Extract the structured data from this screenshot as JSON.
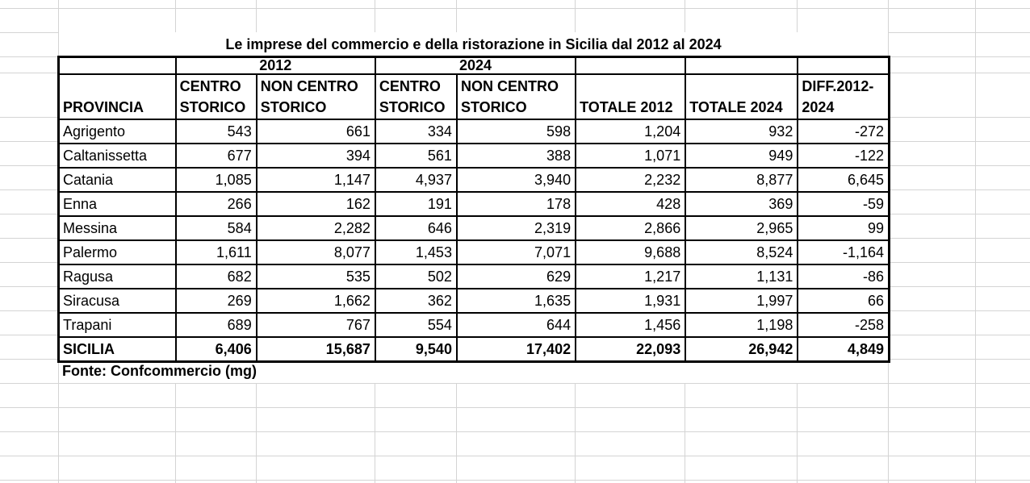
{
  "title": "Le imprese del commercio e della ristorazione in Sicilia dal 2012 al 2024",
  "source": "Fonte: Confcommercio (mg)",
  "table": {
    "year_groups": [
      "2012",
      "2024"
    ],
    "columns": [
      "PROVINCIA",
      "CENTRO STORICO",
      "NON CENTRO STORICO",
      "CENTRO STORICO",
      "NON CENTRO STORICO",
      "TOTALE 2012",
      "TOTALE 2024",
      "DIFF.2012-2024"
    ],
    "rows": [
      [
        "Agrigento",
        "543",
        "661",
        "334",
        "598",
        "1,204",
        "932",
        "-272"
      ],
      [
        "Caltanissetta",
        "677",
        "394",
        "561",
        "388",
        "1,071",
        "949",
        "-122"
      ],
      [
        "Catania",
        "1,085",
        "1,147",
        "4,937",
        "3,940",
        "2,232",
        "8,877",
        "6,645"
      ],
      [
        "Enna",
        "266",
        "162",
        "191",
        "178",
        "428",
        "369",
        "-59"
      ],
      [
        "Messina",
        "584",
        "2,282",
        "646",
        "2,319",
        "2,866",
        "2,965",
        "99"
      ],
      [
        "Palermo",
        "1,611",
        "8,077",
        "1,453",
        "7,071",
        "9,688",
        "8,524",
        "-1,164"
      ],
      [
        "Ragusa",
        "682",
        "535",
        "502",
        "629",
        "1,217",
        "1,131",
        "-86"
      ],
      [
        "Siracusa",
        "269",
        "1,662",
        "362",
        "1,635",
        "1,931",
        "1,997",
        "66"
      ],
      [
        "Trapani",
        "689",
        "767",
        "554",
        "644",
        "1,456",
        "1,198",
        "-258"
      ]
    ],
    "total_row": [
      "SICILIA",
      "6,406",
      "15,687",
      "9,540",
      "17,402",
      "22,093",
      "26,942",
      "4,849"
    ]
  },
  "colors": {
    "gridline": "#d4d4d4",
    "table_border": "#000000",
    "background": "#ffffff",
    "text": "#000000"
  }
}
